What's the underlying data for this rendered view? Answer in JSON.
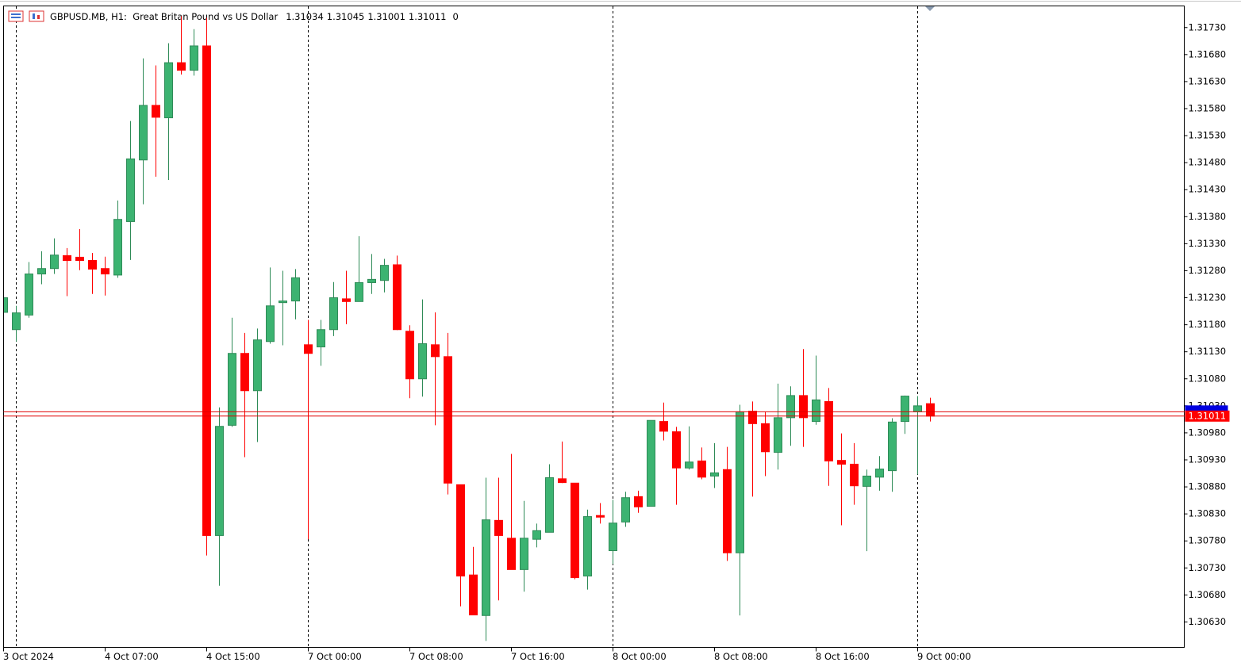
{
  "chart_data": {
    "type": "candlestick",
    "title": "GBPUSD.MB, H1:  Great Britan Pound vs US Dollar",
    "spread": 0,
    "categories": [
      "3 Oct 2024",
      null,
      null,
      null,
      null,
      null,
      null,
      null,
      "4 Oct 07:00",
      null,
      null,
      null,
      null,
      null,
      null,
      null,
      "4 Oct 15:00",
      null,
      null,
      null,
      null,
      null,
      null,
      null,
      "7 Oct 00:00",
      null,
      null,
      null,
      null,
      null,
      null,
      null,
      "7 Oct 08:00",
      null,
      null,
      null,
      null,
      null,
      null,
      null,
      "7 Oct 16:00",
      null,
      null,
      null,
      null,
      null,
      null,
      null,
      "8 Oct 00:00",
      null,
      null,
      null,
      null,
      null,
      null,
      null,
      "8 Oct 08:00",
      null,
      null,
      null,
      null,
      null,
      null,
      null,
      "8 Oct 16:00",
      null,
      null,
      null,
      null,
      null,
      null,
      null,
      "9 Oct 00:00",
      null
    ],
    "open": [
      1.31203,
      1.31171,
      1.31198,
      1.31274,
      1.31284,
      1.31308,
      1.31305,
      1.31299,
      1.31284,
      1.31272,
      1.31371,
      1.31485,
      1.31586,
      1.31563,
      1.31665,
      1.31651,
      1.31696,
      1.3079,
      1.30994,
      1.31127,
      1.31058,
      1.31149,
      1.31221,
      1.31224,
      1.31143,
      1.31139,
      1.31171,
      1.31228,
      1.31223,
      1.31258,
      1.31262,
      1.31291,
      1.31168,
      1.3108,
      1.31143,
      1.31121,
      1.30884,
      1.30717,
      1.30642,
      1.30818,
      1.30785,
      1.30727,
      1.30783,
      1.30796,
      1.30895,
      1.30887,
      1.30715,
      1.30827,
      1.30762,
      1.30815,
      1.30862,
      1.30844,
      1.31001,
      1.30982,
      1.30915,
      1.30928,
      1.309,
      1.30912,
      1.30758,
      1.3102,
      1.30997,
      1.30944,
      1.31008,
      1.31049,
      1.31001,
      1.31038,
      1.30929,
      1.30922,
      1.30881,
      1.30898,
      1.3091,
      1.31001,
      1.31019,
      1.31034
    ],
    "high": [
      1.31237,
      1.31215,
      1.31296,
      1.31316,
      1.3134,
      1.31322,
      1.31357,
      1.31313,
      1.31306,
      1.3141,
      1.31557,
      1.31673,
      1.3166,
      1.31701,
      1.31751,
      1.31727,
      1.31748,
      1.31027,
      1.31193,
      1.31165,
      1.31173,
      1.31286,
      1.3128,
      1.31283,
      1.31189,
      1.31189,
      1.31259,
      1.3128,
      1.31344,
      1.31311,
      1.31302,
      1.31308,
      1.31179,
      1.31227,
      1.31203,
      1.31165,
      1.30884,
      1.30769,
      1.30897,
      1.30897,
      1.30941,
      1.30854,
      1.30812,
      1.30922,
      1.30964,
      1.30887,
      1.30838,
      1.3085,
      1.30856,
      1.30871,
      1.30873,
      1.31003,
      1.31036,
      1.30991,
      1.30992,
      1.30953,
      1.30961,
      1.30954,
      1.31032,
      1.31038,
      1.31019,
      1.31071,
      1.31066,
      1.31135,
      1.31123,
      1.31063,
      1.30979,
      1.30961,
      1.30912,
      1.30937,
      1.31007,
      1.31049,
      1.31048,
      1.31045
    ],
    "low": [
      1.312,
      1.31149,
      1.31193,
      1.31255,
      1.31274,
      1.31233,
      1.31281,
      1.31237,
      1.31234,
      1.31267,
      1.313,
      1.31403,
      1.31454,
      1.31448,
      1.31643,
      1.31641,
      1.30753,
      1.30697,
      1.30991,
      1.30935,
      1.30963,
      1.31145,
      1.31142,
      1.3119,
      1.30783,
      1.31104,
      1.31159,
      1.31181,
      1.31223,
      1.31237,
      1.3124,
      1.3117,
      1.31044,
      1.31047,
      1.30994,
      1.30866,
      1.30659,
      1.30643,
      1.30595,
      1.3067,
      1.30727,
      1.30686,
      1.30768,
      1.30796,
      1.30887,
      1.30709,
      1.3069,
      1.30812,
      1.30737,
      1.30806,
      1.30832,
      1.30844,
      1.30966,
      1.30847,
      1.30912,
      1.30894,
      1.30878,
      1.30743,
      1.30642,
      1.30862,
      1.309,
      1.30912,
      1.30956,
      1.30954,
      1.30995,
      1.30882,
      1.30809,
      1.30847,
      1.30761,
      1.30873,
      1.30871,
      1.30978,
      1.30903,
      1.31001
    ],
    "close": [
      1.3123,
      1.31202,
      1.31274,
      1.31284,
      1.31309,
      1.31299,
      1.31299,
      1.31283,
      1.31274,
      1.31375,
      1.31487,
      1.31586,
      1.31564,
      1.31665,
      1.31651,
      1.31696,
      1.3079,
      1.30992,
      1.31127,
      1.31058,
      1.31152,
      1.31215,
      1.31224,
      1.31267,
      1.31127,
      1.31171,
      1.3123,
      1.31223,
      1.31258,
      1.31264,
      1.3129,
      1.31171,
      1.3108,
      1.31145,
      1.31121,
      1.30887,
      1.30715,
      1.30643,
      1.30819,
      1.3079,
      1.30727,
      1.30785,
      1.30799,
      1.30897,
      1.30888,
      1.30712,
      1.30825,
      1.30824,
      1.30813,
      1.3086,
      1.30843,
      1.31003,
      1.30983,
      1.30915,
      1.30926,
      1.30898,
      1.30906,
      1.30758,
      1.31019,
      1.30997,
      1.30945,
      1.31008,
      1.31049,
      1.31008,
      1.31041,
      1.30928,
      1.30922,
      1.30882,
      1.309,
      1.30913,
      1.31,
      1.31048,
      1.3103,
      1.31011
    ],
    "ask": 1.31019,
    "up_color": "#3cb371",
    "down_color": "#ff0000",
    "ylim": [
      1.30583,
      1.3177
    ],
    "yticks": [
      {
        "value": 1.3173,
        "label": "1.31730"
      },
      {
        "value": 1.3168,
        "label": "1.31680"
      },
      {
        "value": 1.3163,
        "label": "1.31630"
      },
      {
        "value": 1.3158,
        "label": "1.31580"
      },
      {
        "value": 1.3153,
        "label": "1.31530"
      },
      {
        "value": 1.3148,
        "label": "1.31480"
      },
      {
        "value": 1.3143,
        "label": "1.31430"
      },
      {
        "value": 1.3138,
        "label": "1.31380"
      },
      {
        "value": 1.3133,
        "label": "1.31330"
      },
      {
        "value": 1.3128,
        "label": "1.31280"
      },
      {
        "value": 1.3123,
        "label": "1.31230"
      },
      {
        "value": 1.3118,
        "label": "1.31180"
      },
      {
        "value": 1.3113,
        "label": "1.31130"
      },
      {
        "value": 1.3108,
        "label": "1.31080"
      },
      {
        "value": 1.3103,
        "label": "1.31030"
      },
      {
        "value": 1.3098,
        "label": "1.30980"
      },
      {
        "value": 1.3093,
        "label": "1.30930"
      },
      {
        "value": 1.3088,
        "label": "1.30880"
      },
      {
        "value": 1.3083,
        "label": "1.30830"
      },
      {
        "value": 1.3078,
        "label": "1.30780"
      },
      {
        "value": 1.3073,
        "label": "1.30730"
      },
      {
        "value": 1.3068,
        "label": "1.30680"
      },
      {
        "value": 1.3063,
        "label": "1.30630"
      }
    ],
    "grid": false
  }
}
